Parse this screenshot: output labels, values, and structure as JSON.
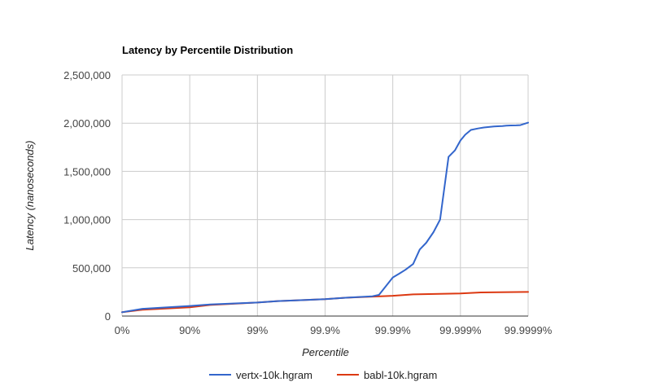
{
  "chart_data": {
    "type": "line",
    "title": "Latency by Percentile Distribution",
    "xlabel": "Percentile",
    "ylabel": "Latency (nanoseconds)",
    "x_scale": "percentile-nines",
    "x_ticks": [
      "0%",
      "90%",
      "99%",
      "99.9%",
      "99.99%",
      "99.999%",
      "99.9999%"
    ],
    "y_ticks": [
      "0",
      "500,000",
      "1,000,000",
      "1,500,000",
      "2,000,000",
      "2,500,000"
    ],
    "ylim": [
      0,
      2500000
    ],
    "xlim": [
      0,
      99.9999
    ],
    "grid": true,
    "legend_position": "bottom",
    "series": [
      {
        "name": "vertx-10k.hgram",
        "color": "#3366cc",
        "x": [
          0,
          50,
          90,
          95,
          99,
          99.5,
          99.9,
          99.95,
          99.98,
          99.984,
          99.99,
          99.992,
          99.9935,
          99.995,
          99.996,
          99.9968,
          99.9975,
          99.998,
          99.9985,
          99.9988,
          99.999,
          99.99915,
          99.9993,
          99.99945,
          99.99955,
          99.99962,
          99.99968,
          99.99972,
          99.99976,
          99.99979,
          99.99982,
          99.99985,
          99.99987,
          99.9999
        ],
        "y": [
          40000,
          75000,
          105000,
          120000,
          140000,
          155000,
          175000,
          190000,
          205000,
          220000,
          400000,
          440000,
          480000,
          540000,
          690000,
          760000,
          870000,
          1000000,
          1650000,
          1720000,
          1820000,
          1880000,
          1930000,
          1945000,
          1955000,
          1960000,
          1965000,
          1968000,
          1970000,
          1975000,
          1976000,
          1977000,
          1980000,
          2005000
        ]
      },
      {
        "name": "babl-10k.hgram",
        "color": "#dc3912",
        "x": [
          0,
          50,
          90,
          95,
          99,
          99.5,
          99.9,
          99.95,
          99.99,
          99.995,
          99.999,
          99.9995,
          99.9999
        ],
        "y": [
          40000,
          65000,
          90000,
          115000,
          140000,
          155000,
          175000,
          190000,
          210000,
          225000,
          235000,
          245000,
          250000
        ]
      }
    ]
  }
}
